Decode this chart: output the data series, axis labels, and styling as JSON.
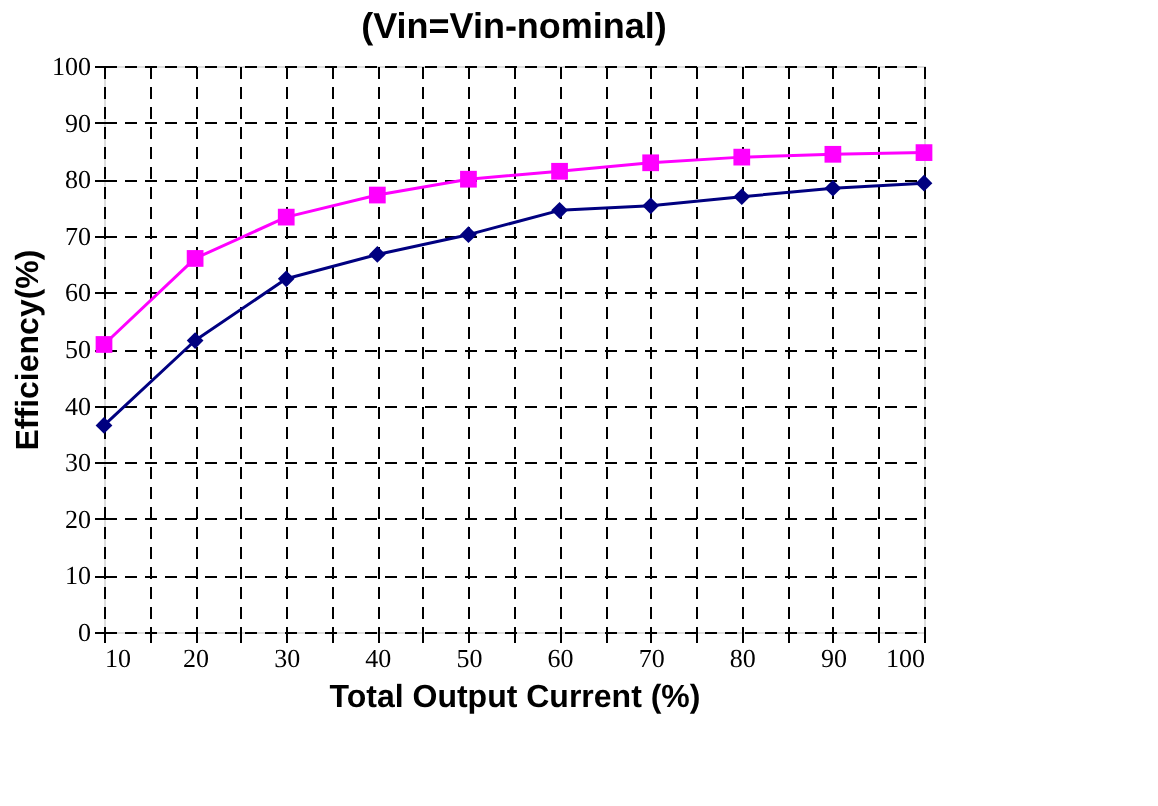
{
  "chart_data": {
    "type": "line",
    "title": "(Vin=Vin-nominal)",
    "xlabel": "Total Output Current (%)",
    "ylabel": "Efficiency(%)",
    "x": [
      10,
      20,
      30,
      40,
      50,
      60,
      70,
      80,
      90,
      100
    ],
    "series": [
      {
        "color": "#000080",
        "marker": "diamond",
        "values": [
          36.5,
          51.5,
          62.4,
          66.7,
          70.2,
          74.5,
          75.3,
          76.9,
          78.4,
          79.3
        ]
      },
      {
        "color": "#ff00ff",
        "marker": "square",
        "values": [
          50.8,
          66,
          73.3,
          77.2,
          80,
          81.4,
          82.9,
          83.9,
          84.4,
          84.7
        ]
      }
    ],
    "xlim": [
      10,
      100
    ],
    "ylim": [
      0,
      100
    ],
    "xticks": [
      10,
      {
        "value": 15,
        "label": null
      },
      20,
      {
        "value": 25,
        "label": null
      },
      30,
      {
        "value": 35,
        "label": null
      },
      40,
      {
        "value": 45,
        "label": null
      },
      50,
      {
        "value": 55,
        "label": null
      },
      60,
      {
        "value": 65,
        "label": null
      },
      70,
      {
        "value": 75,
        "label": null
      },
      80,
      {
        "value": 85,
        "label": null
      },
      90,
      {
        "value": 95,
        "label": null
      },
      100
    ],
    "yticks": [
      0,
      10,
      20,
      30,
      40,
      50,
      60,
      70,
      80,
      90,
      100
    ],
    "grid": true,
    "legend": false,
    "line_style": "solid"
  }
}
